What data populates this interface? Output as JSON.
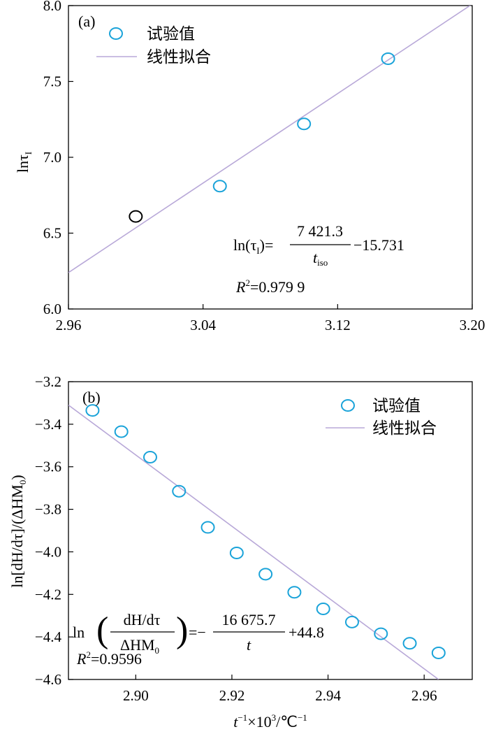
{
  "colors": {
    "marker": "#1aa3d9",
    "outlier_marker": "#000000",
    "fit_line": "#b8a8d8",
    "axis": "#000000"
  },
  "chart_data": [
    {
      "type": "scatter",
      "panel_label": "(a)",
      "ylabel_text": "lnτ",
      "ylabel_sub": "I",
      "xlabel": "",
      "xlim": [
        2.96,
        3.2
      ],
      "ylim": [
        6.0,
        8.0
      ],
      "xticks": [
        "2.96",
        "3.04",
        "3.12",
        "3.20"
      ],
      "yticks": [
        "6.0",
        "6.5",
        "7.0",
        "7.5",
        "8.0"
      ],
      "legend": {
        "position": "top-left",
        "points_label": "试验值",
        "line_label": "线性拟合"
      },
      "series": [
        {
          "name": "试验值",
          "kind": "points",
          "x": [
            3.0,
            3.05,
            3.1,
            3.15
          ],
          "y": [
            6.61,
            6.81,
            7.22,
            7.65
          ],
          "colors": [
            "#000000",
            "#1aa3d9",
            "#1aa3d9",
            "#1aa3d9"
          ]
        },
        {
          "name": "线性拟合",
          "kind": "line",
          "x": [
            2.96,
            3.2
          ],
          "y": [
            6.24,
            8.01
          ]
        }
      ],
      "equation": {
        "lhs": "ln(τ",
        "lhs_sub": "I",
        "lhs_end": ")=",
        "numerator": "7 421.3",
        "denominator": "t",
        "denominator_sub": "iso",
        "tail": "−15.731",
        "r2_label": "R",
        "r2_sup": "2",
        "r2_value": "=0.979 9"
      }
    },
    {
      "type": "scatter",
      "panel_label": "(b)",
      "ylabel_text": "ln[dH/dτ]/(ΔHM",
      "ylabel_sub": "0",
      "ylabel_end": ")",
      "xlabel_text": "t",
      "xlabel_sup1": "−1",
      "xlabel_mid": "×10",
      "xlabel_sup2": "3",
      "xlabel_unit": "/℃",
      "xlabel_sup3": "−1",
      "xlim": [
        2.886,
        2.97
      ],
      "ylim": [
        -4.6,
        -3.2
      ],
      "xticks": [
        "2.90",
        "2.92",
        "2.94",
        "2.96"
      ],
      "xtick_values": [
        2.9,
        2.92,
        2.94,
        2.96
      ],
      "yticks": [
        "−3.2",
        "−3.4",
        "−3.6",
        "−3.8",
        "−4.0",
        "−4.2",
        "−4.4",
        "−4.6"
      ],
      "ytick_values": [
        -3.2,
        -3.4,
        -3.6,
        -3.8,
        -4.0,
        -4.2,
        -4.4,
        -4.6
      ],
      "legend": {
        "position": "top-right",
        "points_label": "试验值",
        "line_label": "线性拟合"
      },
      "series": [
        {
          "name": "试验值",
          "kind": "points",
          "x": [
            2.891,
            2.897,
            2.903,
            2.909,
            2.915,
            2.921,
            2.927,
            2.933,
            2.939,
            2.945,
            2.951,
            2.957,
            2.963
          ],
          "y": [
            -3.335,
            -3.435,
            -3.555,
            -3.715,
            -3.885,
            -4.005,
            -4.105,
            -4.19,
            -4.268,
            -4.33,
            -4.385,
            -4.43,
            -4.475
          ]
        },
        {
          "name": "线性拟合",
          "kind": "line",
          "x": [
            2.886,
            2.963
          ],
          "y": [
            -3.31,
            -4.6
          ]
        }
      ],
      "equation": {
        "ln": "ln",
        "frac1_num": "dH/dτ",
        "frac1_den": "ΔHM",
        "frac1_den_sub": "0",
        "eq": "=−",
        "frac2_num": "16 675.7",
        "frac2_den": "t",
        "tail": "+44.8",
        "r2_label": "R",
        "r2_sup": "2",
        "r2_value": "=0.9596"
      }
    }
  ]
}
